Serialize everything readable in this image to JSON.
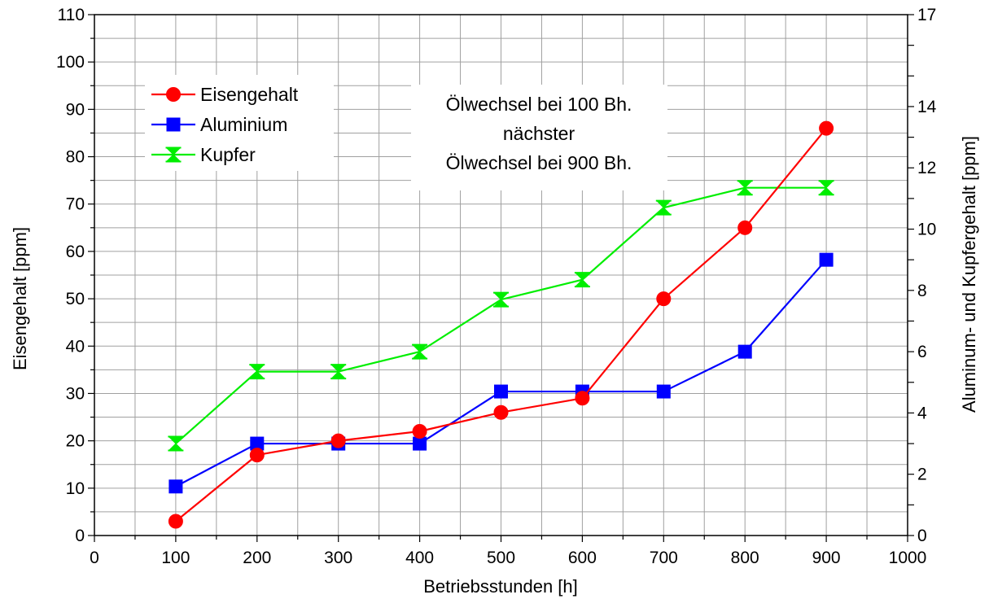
{
  "chart_data": {
    "type": "line",
    "title": "",
    "xlabel": "Betriebsstunden [h]",
    "ylabel": "Eisengehalt [ppm]",
    "y2label": "Aluminum- und Kupfergehalt [ppm]",
    "xlim": [
      0,
      1000
    ],
    "ylim": [
      0,
      110
    ],
    "y2lim": [
      0,
      17
    ],
    "x_ticks": [
      "0",
      "100",
      "200",
      "300",
      "400",
      "500",
      "600",
      "700",
      "800",
      "900",
      "1000"
    ],
    "y_ticks": [
      "0",
      "10",
      "20",
      "30",
      "40",
      "50",
      "60",
      "70",
      "80",
      "90",
      "100",
      "110"
    ],
    "y2_ticks": [
      "0",
      "1",
      "2",
      "3",
      "4",
      "5",
      "6",
      "7",
      "8",
      "9",
      "10",
      "11",
      "12",
      "13",
      "14",
      "15",
      "16",
      "17"
    ],
    "y2_tick_labels": [
      "0",
      "",
      "2",
      "",
      "4",
      "",
      "6",
      "",
      "8",
      "",
      "10",
      "",
      "12",
      "",
      "14",
      "",
      "",
      "17"
    ],
    "grid": true,
    "legend_position": "top-left",
    "x": [
      100,
      200,
      300,
      400,
      500,
      600,
      700,
      800,
      900
    ],
    "series": [
      {
        "name": "Eisengehalt",
        "axis": "left",
        "marker": "circle",
        "color": "#ff0000",
        "values": [
          3,
          17,
          20,
          22,
          26,
          29,
          50,
          65,
          86
        ]
      },
      {
        "name": "Aluminium",
        "axis": "right",
        "marker": "square",
        "color": "#0000ff",
        "values": [
          1.6,
          3.0,
          3.0,
          3.0,
          4.7,
          4.7,
          4.7,
          6.0,
          9.0
        ]
      },
      {
        "name": "Kupfer",
        "axis": "right",
        "marker": "hourglass",
        "color": "#00ee00",
        "values": [
          3.0,
          5.35,
          5.35,
          6.0,
          7.7,
          8.35,
          10.7,
          11.35,
          11.35
        ]
      }
    ],
    "annotation": [
      "Ölwechsel bei 100 Bh.",
      "nächster",
      "Ölwechsel bei 900 Bh."
    ]
  }
}
